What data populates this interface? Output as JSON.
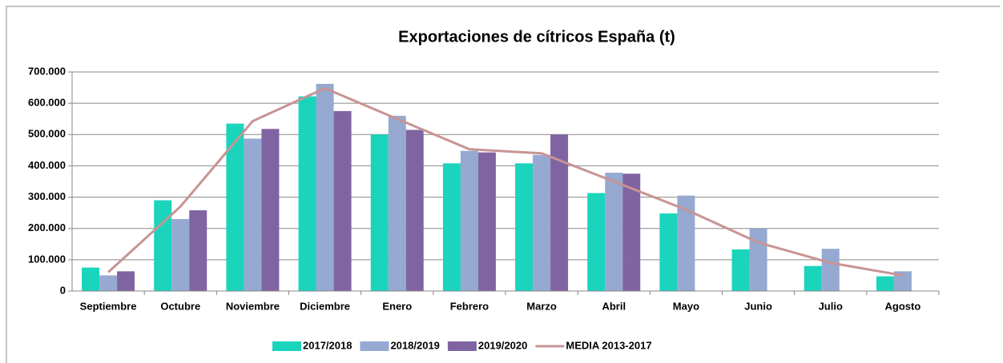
{
  "chart_data": {
    "type": "bar",
    "title": "Exportaciones de cítricos España (t)",
    "categories": [
      "Septiembre",
      "Octubre",
      "Noviembre",
      "Diciembre",
      "Enero",
      "Febrero",
      "Marzo",
      "Abril",
      "Mayo",
      "Junio",
      "Julio",
      "Agosto"
    ],
    "series": [
      {
        "name": "2017/2018",
        "color": "#1ad4bc",
        "values": [
          75000,
          290000,
          535000,
          622000,
          500000,
          408000,
          408000,
          313000,
          248000,
          133000,
          80000,
          47000
        ]
      },
      {
        "name": "2018/2019",
        "color": "#95a9d1",
        "values": [
          50000,
          230000,
          487000,
          662000,
          560000,
          448000,
          435000,
          378000,
          305000,
          200000,
          135000,
          63000
        ]
      },
      {
        "name": "2019/2020",
        "color": "#8064a2",
        "values": [
          63000,
          258000,
          518000,
          575000,
          515000,
          443000,
          500000,
          375000,
          null,
          null,
          null,
          null
        ]
      },
      {
        "name": "MEDIA 2013-2017",
        "color": "#c89494",
        "type": "line",
        "values": [
          60000,
          270000,
          543000,
          648000,
          550000,
          453000,
          440000,
          350000,
          260000,
          155000,
          90000,
          50000
        ]
      }
    ],
    "ylim": [
      0,
      700000
    ],
    "yticks": [
      0,
      {
        "value": 100000,
        "label": "100.000"
      },
      {
        "value": 200000,
        "label": "200.000"
      },
      {
        "value": 300000,
        "label": "300.000"
      },
      {
        "value": 400000,
        "label": "400.000"
      },
      {
        "value": 500000,
        "label": "500.000"
      },
      {
        "value": 600000,
        "label": "600.000"
      },
      {
        "value": 700000,
        "label": "700.000"
      }
    ],
    "grid": true,
    "legend": "bottom"
  }
}
